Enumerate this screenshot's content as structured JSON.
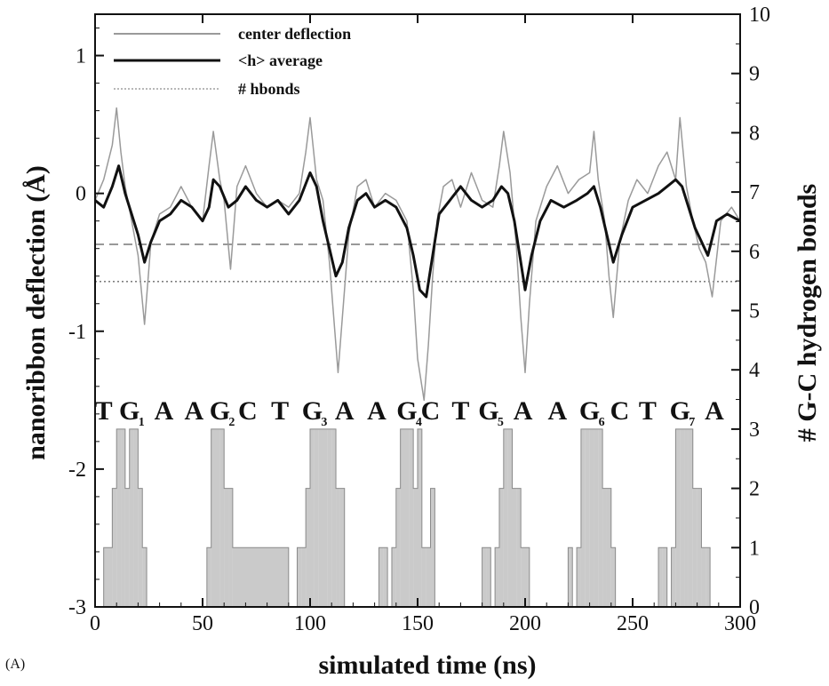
{
  "chart_data": {
    "type": "line",
    "panel_label": "(A)",
    "xlabel": "simulated time (ns)",
    "ylabel": "nanoribbon deflection (Å)",
    "y2label": "# G-C hydrogen bonds",
    "xlim": [
      0,
      300
    ],
    "ylim": [
      -3,
      1.3
    ],
    "y2lim": [
      0,
      10
    ],
    "xticks": [
      "0",
      "50",
      "100",
      "150",
      "200",
      "250",
      "300"
    ],
    "yticks": [
      "-3",
      "-2",
      "-1",
      "0",
      "1"
    ],
    "y2ticks": [
      "0",
      "1",
      "2",
      "3",
      "4",
      "5",
      "6",
      "7",
      "8",
      "9",
      "10"
    ],
    "legend": {
      "position": "top-left",
      "entries": [
        {
          "label": "center deflection",
          "color": "#9a9a9a"
        },
        {
          "label": "<h> average",
          "color": "#111111"
        },
        {
          "label": "# hbonds",
          "color": "#b8b8b8"
        }
      ]
    },
    "reference_lines": [
      {
        "axis": "left",
        "y": -0.37,
        "style": "dashed"
      },
      {
        "axis": "left",
        "y": -0.64,
        "style": "dotted"
      }
    ],
    "sequence": [
      {
        "base": "T",
        "sub": "",
        "x": 4
      },
      {
        "base": "G",
        "sub": "1",
        "x": 16
      },
      {
        "base": "A",
        "sub": "",
        "x": 32
      },
      {
        "base": "A",
        "sub": "",
        "x": 46
      },
      {
        "base": "G",
        "sub": "2",
        "x": 58
      },
      {
        "base": "C",
        "sub": "",
        "x": 71
      },
      {
        "base": "T",
        "sub": "",
        "x": 86
      },
      {
        "base": "G",
        "sub": "3",
        "x": 101
      },
      {
        "base": "A",
        "sub": "",
        "x": 116
      },
      {
        "base": "A",
        "sub": "",
        "x": 131
      },
      {
        "base": "G",
        "sub": "4",
        "x": 145
      },
      {
        "base": "C",
        "sub": "",
        "x": 156
      },
      {
        "base": "T",
        "sub": "",
        "x": 170
      },
      {
        "base": "G",
        "sub": "5",
        "x": 183
      },
      {
        "base": "A",
        "sub": "",
        "x": 199
      },
      {
        "base": "A",
        "sub": "",
        "x": 215
      },
      {
        "base": "G",
        "sub": "6",
        "x": 230
      },
      {
        "base": "C",
        "sub": "",
        "x": 244
      },
      {
        "base": "T",
        "sub": "",
        "x": 257
      },
      {
        "base": "G",
        "sub": "7",
        "x": 272
      },
      {
        "base": "A",
        "sub": "",
        "x": 288
      }
    ],
    "series": [
      {
        "name": "center deflection",
        "axis": "left",
        "color": "#9a9a9a",
        "x": [
          0,
          4,
          8,
          10,
          12,
          14,
          17,
          20,
          23,
          26,
          30,
          35,
          40,
          45,
          50,
          53,
          55,
          58,
          60,
          63,
          66,
          70,
          75,
          80,
          85,
          90,
          95,
          98,
          100,
          103,
          106,
          109,
          111,
          113,
          115,
          118,
          122,
          126,
          130,
          135,
          140,
          145,
          148,
          150,
          153,
          155,
          157,
          159,
          162,
          166,
          170,
          175,
          180,
          185,
          188,
          190,
          193,
          196,
          198,
          200,
          202,
          205,
          210,
          215,
          220,
          225,
          230,
          232,
          234,
          237,
          239,
          241,
          244,
          248,
          252,
          257,
          262,
          266,
          270,
          272,
          275,
          278,
          281,
          284,
          287,
          291,
          296,
          300
        ],
        "y": [
          -0.05,
          0.1,
          0.35,
          0.62,
          0.3,
          0.05,
          -0.2,
          -0.45,
          -0.95,
          -0.35,
          -0.15,
          -0.1,
          0.05,
          -0.1,
          -0.2,
          0.2,
          0.45,
          0.1,
          -0.05,
          -0.55,
          0.05,
          0.2,
          0.0,
          -0.1,
          -0.05,
          -0.1,
          0.0,
          0.3,
          0.55,
          0.1,
          -0.05,
          -0.5,
          -0.9,
          -1.3,
          -0.9,
          -0.3,
          0.05,
          0.1,
          -0.1,
          0.0,
          -0.05,
          -0.2,
          -0.7,
          -1.2,
          -1.5,
          -1.1,
          -0.6,
          -0.2,
          0.05,
          0.1,
          -0.1,
          0.15,
          -0.05,
          -0.1,
          0.2,
          0.45,
          0.15,
          -0.4,
          -0.9,
          -1.3,
          -0.8,
          -0.2,
          0.05,
          0.2,
          0.0,
          0.1,
          0.15,
          0.45,
          0.1,
          -0.2,
          -0.6,
          -0.9,
          -0.35,
          -0.05,
          0.1,
          0.0,
          0.2,
          0.3,
          0.1,
          0.55,
          0.05,
          -0.2,
          -0.4,
          -0.5,
          -0.75,
          -0.2,
          -0.1,
          -0.2
        ]
      },
      {
        "name": "<h> average",
        "axis": "left",
        "color": "#111111",
        "x": [
          0,
          4,
          8,
          11,
          14,
          17,
          20,
          23,
          26,
          30,
          35,
          40,
          45,
          50,
          53,
          55,
          58,
          62,
          66,
          70,
          75,
          80,
          85,
          90,
          95,
          100,
          103,
          106,
          109,
          112,
          115,
          118,
          122,
          126,
          130,
          135,
          140,
          145,
          148,
          151,
          154,
          157,
          160,
          165,
          170,
          175,
          180,
          185,
          189,
          192,
          195,
          198,
          200,
          203,
          207,
          212,
          218,
          224,
          229,
          232,
          235,
          238,
          241,
          245,
          250,
          256,
          262,
          266,
          270,
          273,
          276,
          279,
          282,
          285,
          289,
          294,
          300
        ],
        "y": [
          -0.05,
          -0.1,
          0.05,
          0.2,
          0.0,
          -0.15,
          -0.3,
          -0.5,
          -0.35,
          -0.2,
          -0.15,
          -0.05,
          -0.1,
          -0.2,
          -0.1,
          0.1,
          0.05,
          -0.1,
          -0.05,
          0.05,
          -0.05,
          -0.1,
          -0.05,
          -0.15,
          -0.05,
          0.15,
          0.05,
          -0.2,
          -0.4,
          -0.6,
          -0.5,
          -0.25,
          -0.05,
          0.0,
          -0.1,
          -0.05,
          -0.1,
          -0.25,
          -0.45,
          -0.7,
          -0.75,
          -0.45,
          -0.15,
          -0.05,
          0.05,
          -0.05,
          -0.1,
          -0.05,
          0.05,
          0.0,
          -0.2,
          -0.5,
          -0.7,
          -0.45,
          -0.2,
          -0.05,
          -0.1,
          -0.05,
          0.0,
          0.05,
          -0.1,
          -0.3,
          -0.5,
          -0.3,
          -0.1,
          -0.05,
          0.0,
          0.05,
          0.1,
          0.05,
          -0.1,
          -0.25,
          -0.35,
          -0.45,
          -0.2,
          -0.15,
          -0.2
        ]
      },
      {
        "name": "# hbonds",
        "axis": "right",
        "color": "#b8b8b8",
        "type": "step",
        "x": [
          0,
          2,
          4,
          6,
          8,
          10,
          12,
          14,
          16,
          18,
          20,
          22,
          24,
          40,
          50,
          52,
          54,
          56,
          58,
          60,
          62,
          64,
          90,
          92,
          94,
          96,
          98,
          100,
          102,
          104,
          106,
          108,
          110,
          112,
          114,
          116,
          128,
          130,
          132,
          134,
          136,
          138,
          140,
          142,
          144,
          146,
          148,
          150,
          152,
          154,
          156,
          158,
          176,
          178,
          180,
          182,
          184,
          186,
          188,
          190,
          192,
          194,
          196,
          198,
          200,
          202,
          216,
          218,
          220,
          222,
          224,
          226,
          228,
          230,
          232,
          234,
          236,
          238,
          240,
          242,
          258,
          260,
          262,
          264,
          266,
          268,
          270,
          272,
          274,
          276,
          278,
          280,
          282,
          284,
          286,
          300
        ],
        "y": [
          0,
          0,
          1,
          1,
          2,
          3,
          3,
          2,
          3,
          3,
          2,
          1,
          0,
          0,
          0,
          1,
          3,
          3,
          3,
          2,
          2,
          1,
          0,
          0,
          1,
          1,
          2,
          3,
          3,
          3,
          3,
          3,
          3,
          2,
          2,
          0,
          0,
          0,
          1,
          1,
          0,
          1,
          2,
          3,
          3,
          3,
          2,
          3,
          1,
          1,
          2,
          0,
          0,
          0,
          1,
          1,
          0,
          1,
          2,
          3,
          3,
          2,
          2,
          1,
          1,
          0,
          0,
          0,
          1,
          0,
          1,
          3,
          3,
          3,
          3,
          3,
          2,
          2,
          1,
          0,
          0,
          0,
          1,
          1,
          0,
          1,
          3,
          3,
          3,
          3,
          2,
          2,
          1,
          1,
          0,
          0
        ]
      }
    ]
  }
}
